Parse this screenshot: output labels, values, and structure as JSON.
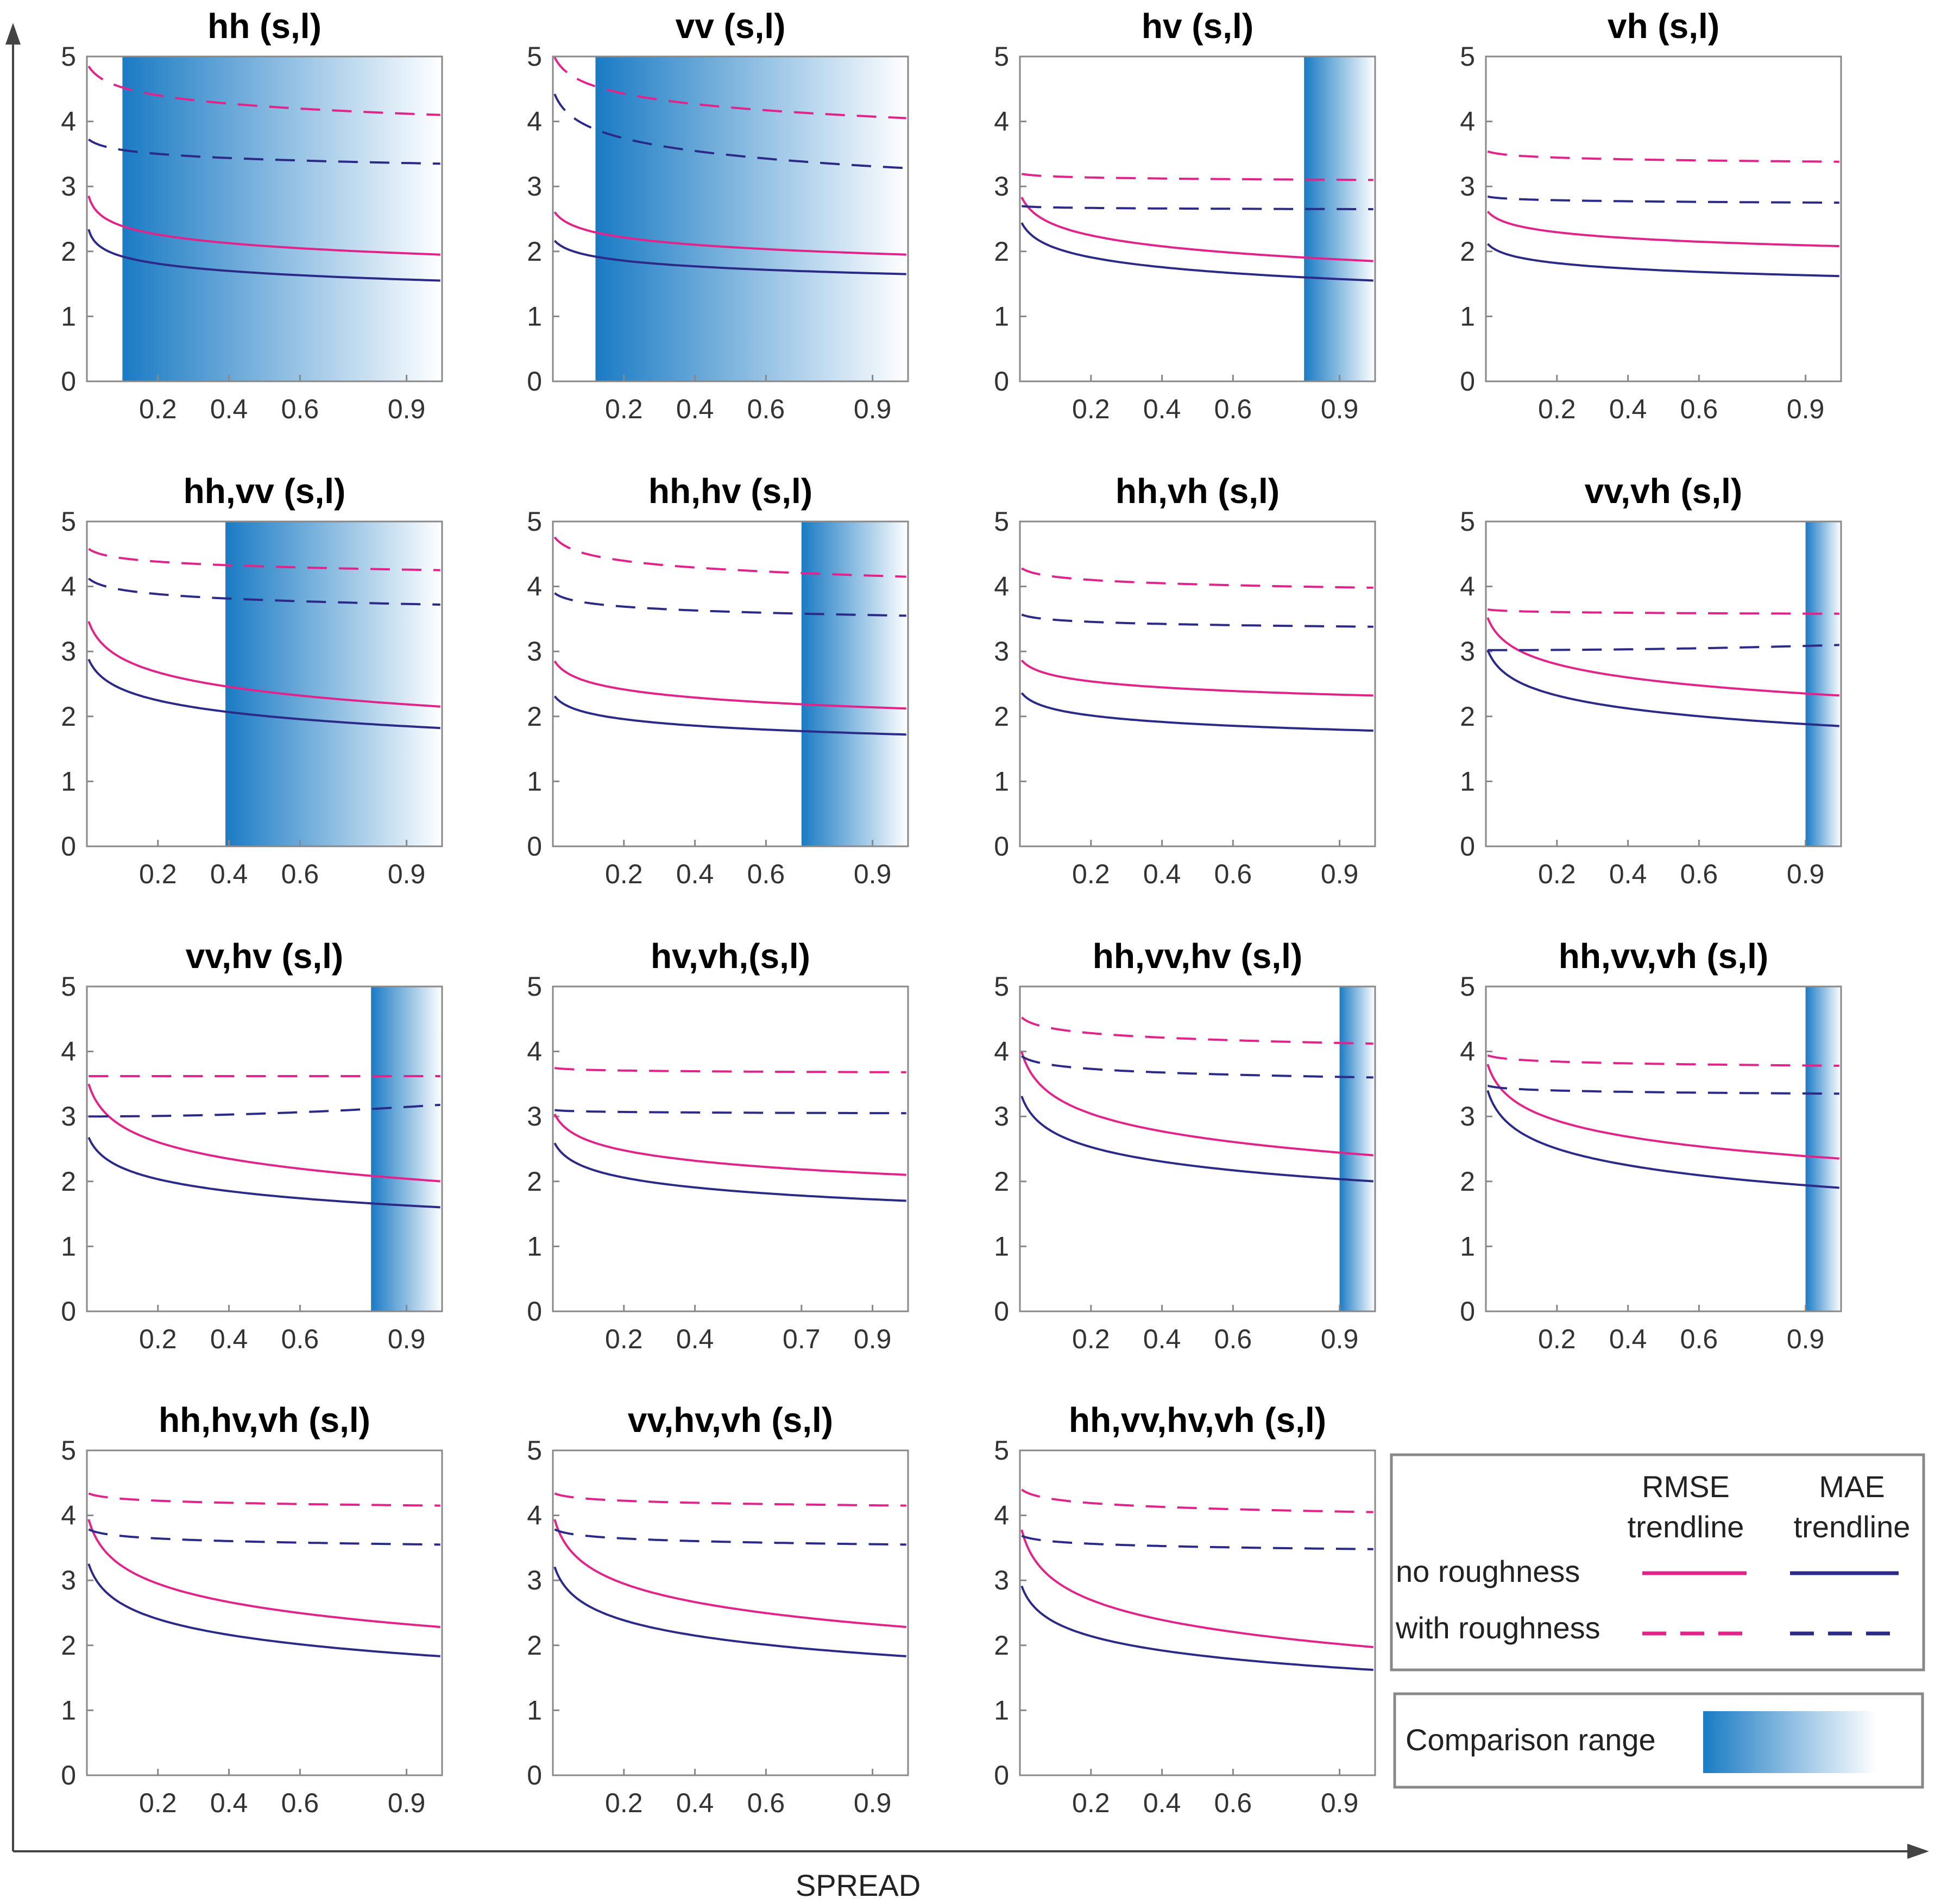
{
  "figure": {
    "axis_label": "SPREAD",
    "colors": {
      "rmse": "#e0248a",
      "mae": "#2b2a86",
      "band_start": "#1a7bc4",
      "band_end": "#ffffff"
    }
  },
  "legend": {
    "col_rmse_1": "RMSE",
    "col_rmse_2": "trendline",
    "col_mae_1": "MAE",
    "col_mae_2": "trendline",
    "row_no": "no roughness",
    "row_with": "with roughness",
    "comparison": "Comparison range"
  },
  "chart_data": [
    {
      "type": "line",
      "title": "hh (s,l)",
      "xticks": [
        "0.2",
        "0.4",
        "0.6",
        "0.9"
      ],
      "yticks": [
        "0",
        "1",
        "2",
        "3",
        "4",
        "5"
      ],
      "xlim": [
        0,
        1
      ],
      "ylim": [
        0,
        5
      ],
      "band": [
        0.1,
        1.0
      ],
      "series": [
        {
          "name": "RMSE no roughness",
          "start": 3.0,
          "end": 1.95,
          "steep": 0.05
        },
        {
          "name": "MAE no roughness",
          "start": 2.5,
          "end": 1.55,
          "steep": 0.02
        },
        {
          "name": "RMSE with roughness",
          "start": 4.9,
          "end": 4.1,
          "steep": 0.3
        },
        {
          "name": "MAE with roughness",
          "start": 3.75,
          "end": 3.35,
          "steep": 0.3
        }
      ]
    },
    {
      "type": "line",
      "title": "vv (s,l)",
      "xticks": [
        "0.2",
        "0.4",
        "0.6",
        "0.9"
      ],
      "yticks": [
        "0",
        "1",
        "2",
        "3",
        "4",
        "5"
      ],
      "xlim": [
        0,
        1
      ],
      "ylim": [
        0,
        5
      ],
      "band": [
        0.12,
        1.0
      ],
      "series": [
        {
          "name": "RMSE no roughness",
          "start": 2.65,
          "end": 1.95,
          "steep": 0.3
        },
        {
          "name": "MAE no roughness",
          "start": 2.2,
          "end": 1.65,
          "steep": 0.3
        },
        {
          "name": "RMSE with roughness",
          "start": 5.05,
          "end": 4.05,
          "steep": 0.3
        },
        {
          "name": "MAE with roughness",
          "start": 4.5,
          "end": 3.28,
          "steep": 0.3
        }
      ]
    },
    {
      "type": "line",
      "title": "hv (s,l)",
      "xticks": [
        "0.2",
        "0.4",
        "0.6",
        "0.9"
      ],
      "yticks": [
        "0",
        "1",
        "2",
        "3",
        "4",
        "5"
      ],
      "xlim": [
        0,
        1
      ],
      "ylim": [
        0,
        5
      ],
      "band": [
        0.8,
        1.0
      ],
      "series": [
        {
          "name": "RMSE no roughness",
          "start": 2.9,
          "end": 1.85,
          "steep": 0.3
        },
        {
          "name": "MAE no roughness",
          "start": 2.5,
          "end": 1.55,
          "steep": 0.3
        },
        {
          "name": "RMSE with roughness",
          "start": 3.2,
          "end": 3.1,
          "steep": 0.3
        },
        {
          "name": "MAE with roughness",
          "start": 2.7,
          "end": 2.65,
          "steep": 0.3
        }
      ]
    },
    {
      "type": "line",
      "title": "vh (s,l)",
      "xticks": [
        "0.2",
        "0.4",
        "0.6",
        "0.9"
      ],
      "yticks": [
        "0",
        "1",
        "2",
        "3",
        "4",
        "5"
      ],
      "xlim": [
        0,
        1
      ],
      "ylim": [
        0,
        5
      ],
      "band": null,
      "series": [
        {
          "name": "RMSE no roughness",
          "start": 2.65,
          "end": 2.08,
          "steep": 0.3
        },
        {
          "name": "MAE no roughness",
          "start": 2.15,
          "end": 1.62,
          "steep": 0.3
        },
        {
          "name": "RMSE with roughness",
          "start": 3.55,
          "end": 3.38,
          "steep": 0.3
        },
        {
          "name": "MAE with roughness",
          "start": 2.85,
          "end": 2.75,
          "steep": 0.3
        }
      ]
    },
    {
      "type": "line",
      "title": "hh,vv (s,l)",
      "xticks": [
        "0.2",
        "0.4",
        "0.6",
        "0.9"
      ],
      "yticks": [
        "0",
        "1",
        "2",
        "3",
        "4",
        "5"
      ],
      "xlim": [
        0,
        1
      ],
      "ylim": [
        0,
        5
      ],
      "band": [
        0.39,
        1.0
      ],
      "series": [
        {
          "name": "RMSE no roughness",
          "start": 3.55,
          "end": 2.15,
          "steep": 0.3
        },
        {
          "name": "MAE no roughness",
          "start": 2.95,
          "end": 1.82,
          "steep": 0.3
        },
        {
          "name": "RMSE with roughness",
          "start": 4.6,
          "end": 4.25,
          "steep": 0.3
        },
        {
          "name": "MAE with roughness",
          "start": 4.15,
          "end": 3.72,
          "steep": 0.3
        }
      ]
    },
    {
      "type": "line",
      "title": "hh,hv (s,l)",
      "xticks": [
        "0.2",
        "0.4",
        "0.6",
        "0.9"
      ],
      "yticks": [
        "0",
        "1",
        "2",
        "3",
        "4",
        "5"
      ],
      "xlim": [
        0,
        1
      ],
      "ylim": [
        0,
        5
      ],
      "band": [
        0.7,
        1.0
      ],
      "series": [
        {
          "name": "RMSE no roughness",
          "start": 2.9,
          "end": 2.12,
          "steep": 0.3
        },
        {
          "name": "MAE no roughness",
          "start": 2.35,
          "end": 1.72,
          "steep": 0.3
        },
        {
          "name": "RMSE with roughness",
          "start": 4.8,
          "end": 4.15,
          "steep": 0.3
        },
        {
          "name": "MAE with roughness",
          "start": 3.92,
          "end": 3.55,
          "steep": 0.3
        }
      ]
    },
    {
      "type": "line",
      "title": "hh,vh (s,l)",
      "xticks": [
        "0.2",
        "0.4",
        "0.6",
        "0.9"
      ],
      "yticks": [
        "0",
        "1",
        "2",
        "3",
        "4",
        "5"
      ],
      "xlim": [
        0,
        1
      ],
      "ylim": [
        0,
        5
      ],
      "band": null,
      "series": [
        {
          "name": "RMSE no roughness",
          "start": 2.9,
          "end": 2.32,
          "steep": 0.3
        },
        {
          "name": "MAE no roughness",
          "start": 2.4,
          "end": 1.78,
          "steep": 0.3
        },
        {
          "name": "RMSE with roughness",
          "start": 4.3,
          "end": 3.98,
          "steep": 0.3
        },
        {
          "name": "MAE with roughness",
          "start": 3.58,
          "end": 3.38,
          "steep": 0.3
        }
      ]
    },
    {
      "type": "line",
      "title": "vv,vh (s,l)",
      "xticks": [
        "0.2",
        "0.4",
        "0.6",
        "0.9"
      ],
      "yticks": [
        "0",
        "1",
        "2",
        "3",
        "4",
        "5"
      ],
      "xlim": [
        0,
        1
      ],
      "ylim": [
        0,
        5
      ],
      "band": [
        0.9,
        1.0
      ],
      "series": [
        {
          "name": "RMSE no roughness",
          "start": 3.6,
          "end": 2.32,
          "steep": 0.3
        },
        {
          "name": "MAE no roughness",
          "start": 3.1,
          "end": 1.85,
          "steep": 0.3
        },
        {
          "name": "RMSE with roughness",
          "start": 3.65,
          "end": 3.58,
          "steep": 0.3
        },
        {
          "name": "MAE with roughness",
          "start": 3.02,
          "end": 3.1,
          "steep": 0.3
        }
      ]
    },
    {
      "type": "line",
      "title": "vv,hv (s,l)",
      "xticks": [
        "0.2",
        "0.4",
        "0.6",
        "0.9"
      ],
      "yticks": [
        "0",
        "1",
        "2",
        "3",
        "4",
        "5"
      ],
      "xlim": [
        0,
        1
      ],
      "ylim": [
        0,
        5
      ],
      "band": [
        0.8,
        1.0
      ],
      "series": [
        {
          "name": "RMSE no roughness",
          "start": 3.6,
          "end": 2.0,
          "steep": 0.3
        },
        {
          "name": "MAE no roughness",
          "start": 2.75,
          "end": 1.6,
          "steep": 0.3
        },
        {
          "name": "RMSE with roughness",
          "start": 3.62,
          "end": 3.62,
          "steep": 0.3
        },
        {
          "name": "MAE with roughness",
          "start": 3.0,
          "end": 3.18,
          "steep": 0.3
        }
      ]
    },
    {
      "type": "line",
      "title": "hv,vh,(s,l)",
      "xticks": [
        "0.2",
        "0.4",
        "0.7",
        "0.9"
      ],
      "yticks": [
        "0",
        "1",
        "2",
        "3",
        "4",
        "5"
      ],
      "xlim": [
        0,
        1
      ],
      "ylim": [
        0,
        5
      ],
      "band": null,
      "series": [
        {
          "name": "RMSE no roughness",
          "start": 3.1,
          "end": 2.1,
          "steep": 0.3
        },
        {
          "name": "MAE no roughness",
          "start": 2.65,
          "end": 1.7,
          "steep": 0.3
        },
        {
          "name": "RMSE with roughness",
          "start": 3.75,
          "end": 3.68,
          "steep": 0.3
        },
        {
          "name": "MAE with roughness",
          "start": 3.1,
          "end": 3.05,
          "steep": 0.3
        }
      ]
    },
    {
      "type": "line",
      "title": "hh,vv,hv (s,l)",
      "xticks": [
        "0.2",
        "0.4",
        "0.6",
        "0.9"
      ],
      "yticks": [
        "0",
        "1",
        "2",
        "3",
        "4",
        "5"
      ],
      "xlim": [
        0,
        1
      ],
      "ylim": [
        0,
        5
      ],
      "band": [
        0.9,
        1.0
      ],
      "series": [
        {
          "name": "RMSE no roughness",
          "start": 4.1,
          "end": 2.4,
          "steep": 0.3
        },
        {
          "name": "MAE no roughness",
          "start": 3.4,
          "end": 2.0,
          "steep": 0.3
        },
        {
          "name": "RMSE with roughness",
          "start": 4.55,
          "end": 4.12,
          "steep": 0.3
        },
        {
          "name": "MAE with roughness",
          "start": 3.95,
          "end": 3.6,
          "steep": 0.3
        }
      ]
    },
    {
      "type": "line",
      "title": "hh,vv,vh (s,l)",
      "xticks": [
        "0.2",
        "0.4",
        "0.6",
        "0.9"
      ],
      "yticks": [
        "0",
        "1",
        "2",
        "3",
        "4",
        "5"
      ],
      "xlim": [
        0,
        1
      ],
      "ylim": [
        0,
        5
      ],
      "band": [
        0.9,
        1.0
      ],
      "series": [
        {
          "name": "RMSE no roughness",
          "start": 3.9,
          "end": 2.35,
          "steep": 0.3
        },
        {
          "name": "MAE no roughness",
          "start": 3.5,
          "end": 1.9,
          "steep": 0.3
        },
        {
          "name": "RMSE with roughness",
          "start": 3.95,
          "end": 3.78,
          "steep": 0.3
        },
        {
          "name": "MAE with roughness",
          "start": 3.48,
          "end": 3.35,
          "steep": 0.3
        }
      ]
    },
    {
      "type": "line",
      "title": "hh,hv,vh (s,l)",
      "xticks": [
        "0.2",
        "0.4",
        "0.6",
        "0.9"
      ],
      "yticks": [
        "0",
        "1",
        "2",
        "3",
        "4",
        "5"
      ],
      "xlim": [
        0,
        1
      ],
      "ylim": [
        0,
        5
      ],
      "band": null,
      "series": [
        {
          "name": "RMSE no roughness",
          "start": 4.05,
          "end": 2.28,
          "steep": 0.3
        },
        {
          "name": "MAE no roughness",
          "start": 3.35,
          "end": 1.83,
          "steep": 0.3
        },
        {
          "name": "RMSE with roughness",
          "start": 4.35,
          "end": 4.15,
          "steep": 0.3
        },
        {
          "name": "MAE with roughness",
          "start": 3.8,
          "end": 3.55,
          "steep": 0.3
        }
      ]
    },
    {
      "type": "line",
      "title": "vv,hv,vh (s,l)",
      "xticks": [
        "0.2",
        "0.4",
        "0.6",
        "0.9"
      ],
      "yticks": [
        "0",
        "1",
        "2",
        "3",
        "4",
        "5"
      ],
      "xlim": [
        0,
        1
      ],
      "ylim": [
        0,
        5
      ],
      "band": null,
      "series": [
        {
          "name": "RMSE no roughness",
          "start": 4.05,
          "end": 2.28,
          "steep": 0.3
        },
        {
          "name": "MAE no roughness",
          "start": 3.3,
          "end": 1.83,
          "steep": 0.3
        },
        {
          "name": "RMSE with roughness",
          "start": 4.35,
          "end": 4.15,
          "steep": 0.3
        },
        {
          "name": "MAE with roughness",
          "start": 3.8,
          "end": 3.55,
          "steep": 0.3
        }
      ]
    },
    {
      "type": "line",
      "title": "hh,vv,hv,vh (s,l)",
      "xticks": [
        "0.2",
        "0.4",
        "0.6",
        "0.9"
      ],
      "yticks": [
        "0",
        "1",
        "2",
        "3",
        "4",
        "5"
      ],
      "xlim": [
        0,
        1
      ],
      "ylim": [
        0,
        5
      ],
      "band": null,
      "series": [
        {
          "name": "RMSE no roughness",
          "start": 3.9,
          "end": 1.97,
          "steep": 0.3
        },
        {
          "name": "MAE no roughness",
          "start": 3.0,
          "end": 1.62,
          "steep": 0.3
        },
        {
          "name": "RMSE with roughness",
          "start": 4.42,
          "end": 4.05,
          "steep": 0.3
        },
        {
          "name": "MAE with roughness",
          "start": 3.7,
          "end": 3.48,
          "steep": 0.3
        }
      ]
    }
  ]
}
